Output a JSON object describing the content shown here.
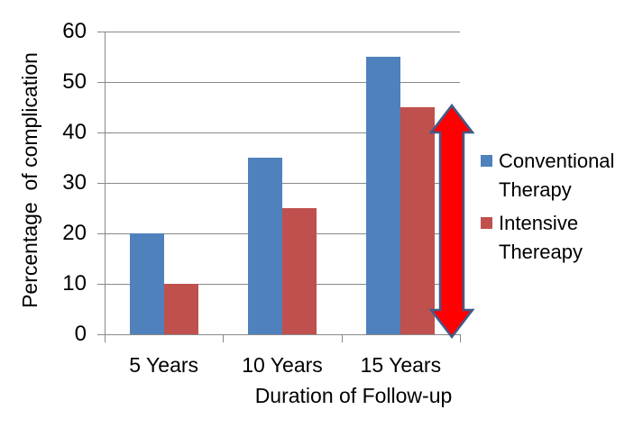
{
  "chart_data": {
    "type": "bar",
    "title": "",
    "categories": [
      "5 Years",
      "10 Years",
      "15 Years"
    ],
    "series": [
      {
        "name": "Conventional Therapy",
        "color": "#4F81BD",
        "values": [
          20,
          35,
          55
        ]
      },
      {
        "name": "Intensive Thereapy",
        "color": "#C0504D",
        "values": [
          10,
          25,
          45
        ]
      }
    ],
    "xlabel": "Duration of Follow-up",
    "ylabel": "Percentage  of complication",
    "ylim": [
      0,
      60
    ],
    "yticks": [
      0,
      10,
      20,
      30,
      40,
      50,
      60
    ],
    "grid": true,
    "legend_position": "right",
    "gridline_color": "#898989",
    "axis_color": "#898989",
    "text_color": "#000000",
    "background_color": "#FFFFFF"
  },
  "annotation_arrow": {
    "shape": "double-headed-vertical-arrow",
    "fill_color": "#FF0000",
    "outline_color": "#3E5C8A",
    "spans_values": [
      0,
      45
    ],
    "at_category": "15 Years"
  }
}
